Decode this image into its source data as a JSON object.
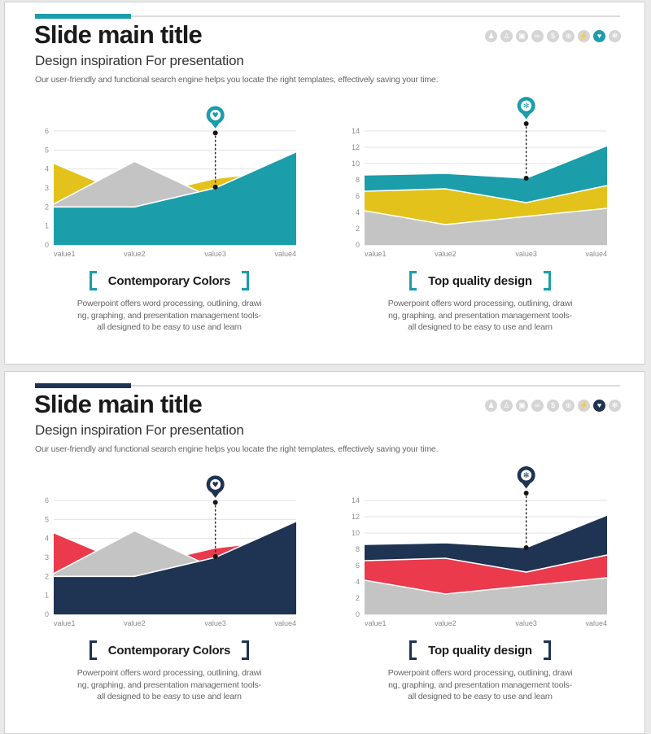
{
  "page": {
    "background": "#e9e9e9"
  },
  "slides": [
    {
      "accent": "#1b9daa",
      "title": "Slide main title",
      "subtitle": "Design inspiration For presentation",
      "body": "Our user-friendly and functional search engine helps you locate the right templates, effectively saving your time.",
      "active_icon": 7,
      "icons": [
        {
          "name": "podium-icon",
          "glyph": "♟"
        },
        {
          "name": "person-icon",
          "glyph": "♙"
        },
        {
          "name": "tv-icon",
          "glyph": "▣"
        },
        {
          "name": "link-icon",
          "glyph": "∞"
        },
        {
          "name": "dollar-icon",
          "glyph": "$"
        },
        {
          "name": "search-icon",
          "glyph": "⊕"
        },
        {
          "name": "runner-icon",
          "glyph": "⚡"
        },
        {
          "name": "heart-hand-icon",
          "glyph": "♥"
        },
        {
          "name": "molecule-icon",
          "glyph": "✻"
        }
      ],
      "captions": [
        {
          "label": "Contemporary Colors",
          "lines": [
            "Powerpoint offers word processing, outlining, drawi",
            "ng, graphing, and presentation management tools-",
            "all designed to be easy to use and learn"
          ]
        },
        {
          "label": "Top quality design",
          "lines": [
            "Powerpoint offers word processing, outlining, drawi",
            "ng, graphing, and presentation management tools-",
            "all designed to be easy to use and learn"
          ]
        }
      ],
      "chart_refs": [
        0,
        1
      ]
    },
    {
      "accent": "#1f3352",
      "title": "Slide main title",
      "subtitle": "Design inspiration For presentation",
      "body": "Our user-friendly and functional search engine helps you locate the right templates, effectively saving your time.",
      "active_icon": 7,
      "icons": [
        {
          "name": "podium-icon",
          "glyph": "♟"
        },
        {
          "name": "person-icon",
          "glyph": "♙"
        },
        {
          "name": "tv-icon",
          "glyph": "▣"
        },
        {
          "name": "link-icon",
          "glyph": "∞"
        },
        {
          "name": "dollar-icon",
          "glyph": "$"
        },
        {
          "name": "search-icon",
          "glyph": "⊕"
        },
        {
          "name": "runner-icon",
          "glyph": "⚡"
        },
        {
          "name": "heart-hand-icon",
          "glyph": "♥"
        },
        {
          "name": "molecule-icon",
          "glyph": "✻"
        }
      ],
      "captions": [
        {
          "label": "Contemporary Colors",
          "lines": [
            "Powerpoint offers word processing, outlining, drawi",
            "ng, graphing, and presentation management tools-",
            "all designed to be easy to use and learn"
          ]
        },
        {
          "label": "Top quality design",
          "lines": [
            "Powerpoint offers word processing, outlining, drawi",
            "ng, graphing, and presentation management tools-",
            "all designed to be easy to use and learn"
          ]
        }
      ],
      "chart_refs": [
        2,
        3
      ]
    }
  ],
  "chart_data": [
    {
      "type": "area",
      "categories": [
        "value1",
        "value2",
        "value3",
        "value4"
      ],
      "ylim": [
        0,
        6
      ],
      "ytick_step": 1,
      "grid": true,
      "legend": false,
      "series": [
        {
          "name": "teal",
          "color": "#1b9daa",
          "values": [
            2.0,
            2.0,
            3.0,
            4.9
          ]
        },
        {
          "name": "gray",
          "color": "#c4c4c4",
          "values": [
            2.15,
            4.4,
            2.4,
            2.4
          ]
        },
        {
          "name": "yellow",
          "color": "#e3c31b",
          "values": [
            4.3,
            2.5,
            3.5,
            4.0
          ]
        }
      ],
      "paint_order": [
        "yellow",
        "gray",
        "teal"
      ],
      "marker": {
        "category": "value3",
        "value": 3.05,
        "top_value": 5.9,
        "color": "#1b9daa",
        "icon": "heart-hand-icon",
        "glyph": "♥"
      }
    },
    {
      "type": "area",
      "categories": [
        "value1",
        "value2",
        "value3",
        "value4"
      ],
      "ylim": [
        0,
        14
      ],
      "ytick_step": 2,
      "grid": true,
      "legend": false,
      "series": [
        {
          "name": "teal",
          "color": "#1b9daa",
          "values": [
            8.6,
            8.8,
            8.2,
            12.2
          ]
        },
        {
          "name": "gray",
          "color": "#c4c4c4",
          "values": [
            4.2,
            2.5,
            3.5,
            4.5
          ]
        },
        {
          "name": "yellow",
          "color": "#e3c31b",
          "values": [
            6.6,
            6.9,
            5.2,
            7.3
          ]
        }
      ],
      "paint_order": [
        "teal",
        "yellow",
        "gray"
      ],
      "marker": {
        "category": "value3",
        "value": 8.2,
        "top_value": 14.9,
        "color": "#1b9daa",
        "icon": "molecule-icon",
        "glyph": "✻"
      }
    },
    {
      "type": "area",
      "categories": [
        "value1",
        "value2",
        "value3",
        "value4"
      ],
      "ylim": [
        0,
        6
      ],
      "ytick_step": 1,
      "grid": true,
      "legend": false,
      "series": [
        {
          "name": "navy",
          "color": "#1f3352",
          "values": [
            2.0,
            2.0,
            3.0,
            4.9
          ]
        },
        {
          "name": "gray",
          "color": "#c4c4c4",
          "values": [
            2.15,
            4.4,
            2.4,
            2.4
          ]
        },
        {
          "name": "red",
          "color": "#ea3a4c",
          "values": [
            4.3,
            2.5,
            3.5,
            4.0
          ]
        }
      ],
      "paint_order": [
        "red",
        "gray",
        "navy"
      ],
      "marker": {
        "category": "value3",
        "value": 3.05,
        "top_value": 5.9,
        "color": "#1f3352",
        "icon": "heart-hand-icon",
        "glyph": "♥"
      }
    },
    {
      "type": "area",
      "categories": [
        "value1",
        "value2",
        "value3",
        "value4"
      ],
      "ylim": [
        0,
        14
      ],
      "ytick_step": 2,
      "grid": true,
      "legend": false,
      "series": [
        {
          "name": "navy",
          "color": "#1f3352",
          "values": [
            8.6,
            8.8,
            8.2,
            12.2
          ]
        },
        {
          "name": "gray",
          "color": "#c4c4c4",
          "values": [
            4.2,
            2.5,
            3.5,
            4.5
          ]
        },
        {
          "name": "red",
          "color": "#ea3a4c",
          "values": [
            6.6,
            6.9,
            5.2,
            7.3
          ]
        }
      ],
      "paint_order": [
        "navy",
        "red",
        "gray"
      ],
      "marker": {
        "category": "value3",
        "value": 8.2,
        "top_value": 14.9,
        "color": "#1f3352",
        "icon": "molecule-icon",
        "glyph": "✻"
      }
    }
  ]
}
